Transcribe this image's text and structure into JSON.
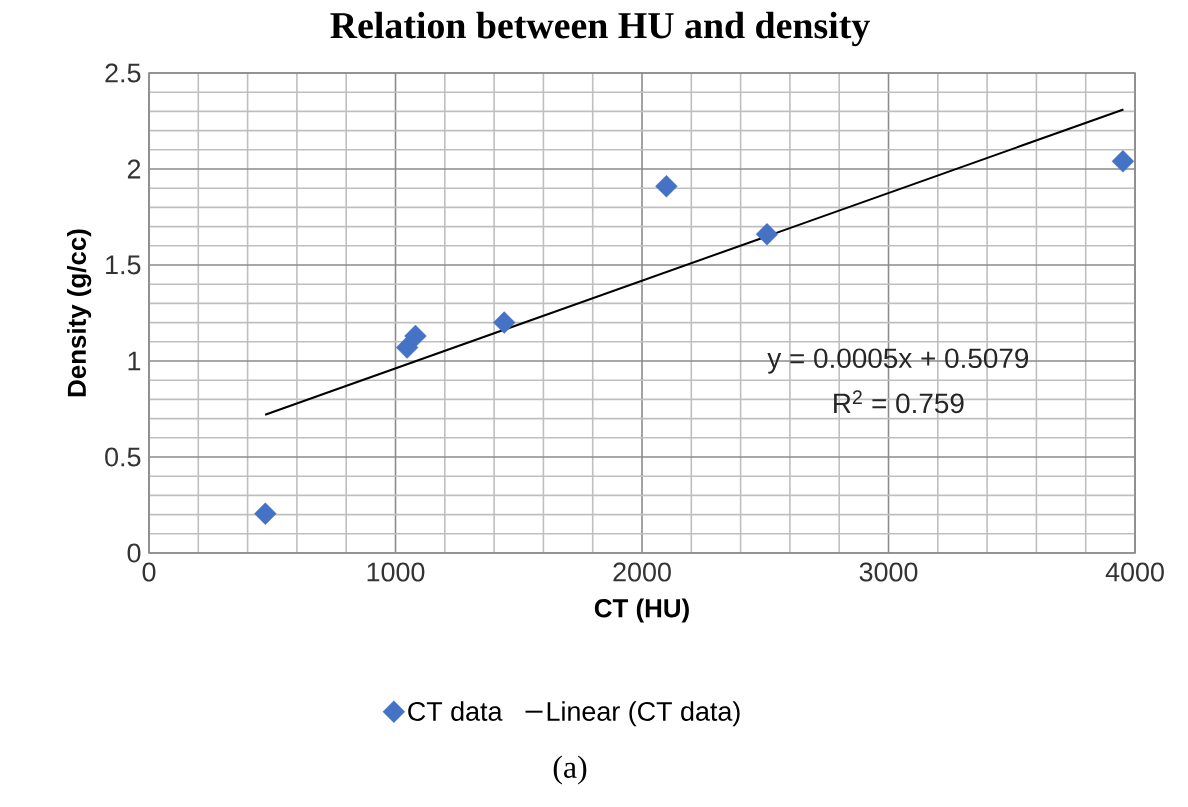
{
  "chart_data": {
    "type": "scatter",
    "title": "Relation between HU and density",
    "xlabel": "CT (HU)",
    "ylabel": "Density (g/cc)",
    "xlim": [
      0,
      4000
    ],
    "ylim": [
      0,
      2.5
    ],
    "xticks": [
      0,
      1000,
      2000,
      3000,
      4000
    ],
    "yticks": [
      0,
      0.5,
      1,
      1.5,
      2,
      2.5
    ],
    "grid": true,
    "legend": "bottom",
    "series": [
      {
        "name": "CT data",
        "color": "#4472c4",
        "marker": "diamond",
        "x": [
          472,
          1047,
          1081,
          1441,
          2099,
          2507,
          3951
        ],
        "values": [
          0.205,
          1.07,
          1.13,
          1.2,
          1.91,
          1.66,
          2.04
        ]
      },
      {
        "name": "Linear (CT data)",
        "type": "line",
        "color": "#000000",
        "marker": "none",
        "line_style": "solid",
        "x": [
          471,
          3953
        ],
        "values": [
          0.72,
          2.31
        ]
      }
    ],
    "annotations": [
      "y = 0.0005x + 0.5079",
      "R$^{2}$ = 0.759",
      "(a)"
    ]
  }
}
